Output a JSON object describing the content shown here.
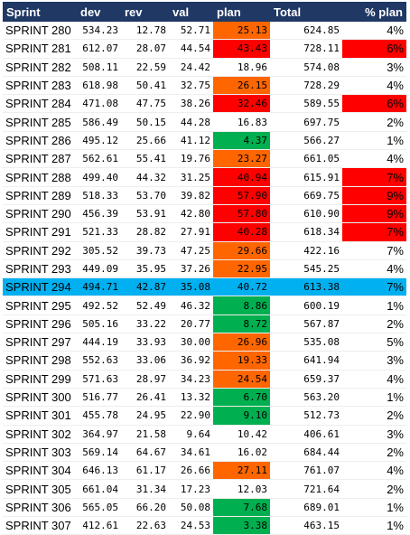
{
  "headers": [
    "Sprint",
    "dev",
    "rev",
    "val",
    "plan",
    "Total",
    "% plan"
  ],
  "colors": {
    "header_bg": "#1f3864",
    "highlight_row": "#00b0f0",
    "green": "#00b050",
    "orange": "#ff6600",
    "red": "#ff0000"
  },
  "rows": [
    {
      "sprint": "SPRINT 280",
      "dev": "534.23",
      "rev": "12.78",
      "val": "52.71",
      "plan": "25.13",
      "plan_color": "orange",
      "total": "624.85",
      "pct": "4%",
      "pct_color": "none",
      "highlight": false
    },
    {
      "sprint": "SPRINT 281",
      "dev": "612.07",
      "rev": "28.07",
      "val": "44.54",
      "plan": "43.43",
      "plan_color": "red",
      "total": "728.11",
      "pct": "6%",
      "pct_color": "red",
      "highlight": false
    },
    {
      "sprint": "SPRINT 282",
      "dev": "508.11",
      "rev": "22.59",
      "val": "24.42",
      "plan": "18.96",
      "plan_color": "none",
      "total": "574.08",
      "pct": "3%",
      "pct_color": "none",
      "highlight": false
    },
    {
      "sprint": "SPRINT 283",
      "dev": "618.98",
      "rev": "50.41",
      "val": "32.75",
      "plan": "26.15",
      "plan_color": "orange",
      "total": "728.29",
      "pct": "4%",
      "pct_color": "none",
      "highlight": false
    },
    {
      "sprint": "SPRINT 284",
      "dev": "471.08",
      "rev": "47.75",
      "val": "38.26",
      "plan": "32.46",
      "plan_color": "red",
      "total": "589.55",
      "pct": "6%",
      "pct_color": "red",
      "highlight": false
    },
    {
      "sprint": "SPRINT 285",
      "dev": "586.49",
      "rev": "50.15",
      "val": "44.28",
      "plan": "16.83",
      "plan_color": "none",
      "total": "697.75",
      "pct": "2%",
      "pct_color": "none",
      "highlight": false
    },
    {
      "sprint": "SPRINT 286",
      "dev": "495.12",
      "rev": "25.66",
      "val": "41.12",
      "plan": "4.37",
      "plan_color": "green",
      "total": "566.27",
      "pct": "1%",
      "pct_color": "none",
      "highlight": false
    },
    {
      "sprint": "SPRINT 287",
      "dev": "562.61",
      "rev": "55.41",
      "val": "19.76",
      "plan": "23.27",
      "plan_color": "orange",
      "total": "661.05",
      "pct": "4%",
      "pct_color": "none",
      "highlight": false
    },
    {
      "sprint": "SPRINT 288",
      "dev": "499.40",
      "rev": "44.32",
      "val": "31.25",
      "plan": "40.94",
      "plan_color": "red",
      "total": "615.91",
      "pct": "7%",
      "pct_color": "red",
      "highlight": false
    },
    {
      "sprint": "SPRINT 289",
      "dev": "518.33",
      "rev": "53.70",
      "val": "39.82",
      "plan": "57.90",
      "plan_color": "red",
      "total": "669.75",
      "pct": "9%",
      "pct_color": "red",
      "highlight": false
    },
    {
      "sprint": "SPRINT 290",
      "dev": "456.39",
      "rev": "53.91",
      "val": "42.80",
      "plan": "57.80",
      "plan_color": "red",
      "total": "610.90",
      "pct": "9%",
      "pct_color": "red",
      "highlight": false
    },
    {
      "sprint": "SPRINT 291",
      "dev": "521.33",
      "rev": "28.82",
      "val": "27.91",
      "plan": "40.28",
      "plan_color": "red",
      "total": "618.34",
      "pct": "7%",
      "pct_color": "red",
      "highlight": false
    },
    {
      "sprint": "SPRINT 292",
      "dev": "305.52",
      "rev": "39.73",
      "val": "47.25",
      "plan": "29.66",
      "plan_color": "orange",
      "total": "422.16",
      "pct": "7%",
      "pct_color": "none",
      "highlight": false
    },
    {
      "sprint": "SPRINT 293",
      "dev": "449.09",
      "rev": "35.95",
      "val": "37.26",
      "plan": "22.95",
      "plan_color": "orange",
      "total": "545.25",
      "pct": "4%",
      "pct_color": "none",
      "highlight": false
    },
    {
      "sprint": "SPRINT 294",
      "dev": "494.71",
      "rev": "42.87",
      "val": "35.08",
      "plan": "40.72",
      "plan_color": "none",
      "total": "613.38",
      "pct": "7%",
      "pct_color": "none",
      "highlight": true
    },
    {
      "sprint": "SPRINT 295",
      "dev": "492.52",
      "rev": "52.49",
      "val": "46.32",
      "plan": "8.86",
      "plan_color": "green",
      "total": "600.19",
      "pct": "1%",
      "pct_color": "none",
      "highlight": false
    },
    {
      "sprint": "SPRINT 296",
      "dev": "505.16",
      "rev": "33.22",
      "val": "20.77",
      "plan": "8.72",
      "plan_color": "green",
      "total": "567.87",
      "pct": "2%",
      "pct_color": "none",
      "highlight": false
    },
    {
      "sprint": "SPRINT 297",
      "dev": "444.19",
      "rev": "33.93",
      "val": "30.00",
      "plan": "26.96",
      "plan_color": "orange",
      "total": "535.08",
      "pct": "5%",
      "pct_color": "none",
      "highlight": false
    },
    {
      "sprint": "SPRINT 298",
      "dev": "552.63",
      "rev": "33.06",
      "val": "36.92",
      "plan": "19.33",
      "plan_color": "orange",
      "total": "641.94",
      "pct": "3%",
      "pct_color": "none",
      "highlight": false
    },
    {
      "sprint": "SPRINT 299",
      "dev": "571.63",
      "rev": "28.97",
      "val": "34.23",
      "plan": "24.54",
      "plan_color": "orange",
      "total": "659.37",
      "pct": "4%",
      "pct_color": "none",
      "highlight": false
    },
    {
      "sprint": "SPRINT 300",
      "dev": "516.77",
      "rev": "26.41",
      "val": "13.32",
      "plan": "6.70",
      "plan_color": "green",
      "total": "563.20",
      "pct": "1%",
      "pct_color": "none",
      "highlight": false
    },
    {
      "sprint": "SPRINT 301",
      "dev": "455.78",
      "rev": "24.95",
      "val": "22.90",
      "plan": "9.10",
      "plan_color": "green",
      "total": "512.73",
      "pct": "2%",
      "pct_color": "none",
      "highlight": false
    },
    {
      "sprint": "SPRINT 302",
      "dev": "364.97",
      "rev": "21.58",
      "val": "9.64",
      "plan": "10.42",
      "plan_color": "none",
      "total": "406.61",
      "pct": "3%",
      "pct_color": "none",
      "highlight": false
    },
    {
      "sprint": "SPRINT 303",
      "dev": "569.14",
      "rev": "64.67",
      "val": "34.61",
      "plan": "16.02",
      "plan_color": "none",
      "total": "684.44",
      "pct": "2%",
      "pct_color": "none",
      "highlight": false
    },
    {
      "sprint": "SPRINT 304",
      "dev": "646.13",
      "rev": "61.17",
      "val": "26.66",
      "plan": "27.11",
      "plan_color": "orange",
      "total": "761.07",
      "pct": "4%",
      "pct_color": "none",
      "highlight": false
    },
    {
      "sprint": "SPRINT 305",
      "dev": "661.04",
      "rev": "31.34",
      "val": "17.23",
      "plan": "12.03",
      "plan_color": "none",
      "total": "721.64",
      "pct": "2%",
      "pct_color": "none",
      "highlight": false
    },
    {
      "sprint": "SPRINT 306",
      "dev": "565.05",
      "rev": "66.20",
      "val": "50.08",
      "plan": "7.68",
      "plan_color": "green",
      "total": "689.01",
      "pct": "1%",
      "pct_color": "none",
      "highlight": false
    },
    {
      "sprint": "SPRINT 307",
      "dev": "412.61",
      "rev": "22.63",
      "val": "24.53",
      "plan": "3.38",
      "plan_color": "green",
      "total": "463.15",
      "pct": "1%",
      "pct_color": "none",
      "highlight": false
    }
  ]
}
